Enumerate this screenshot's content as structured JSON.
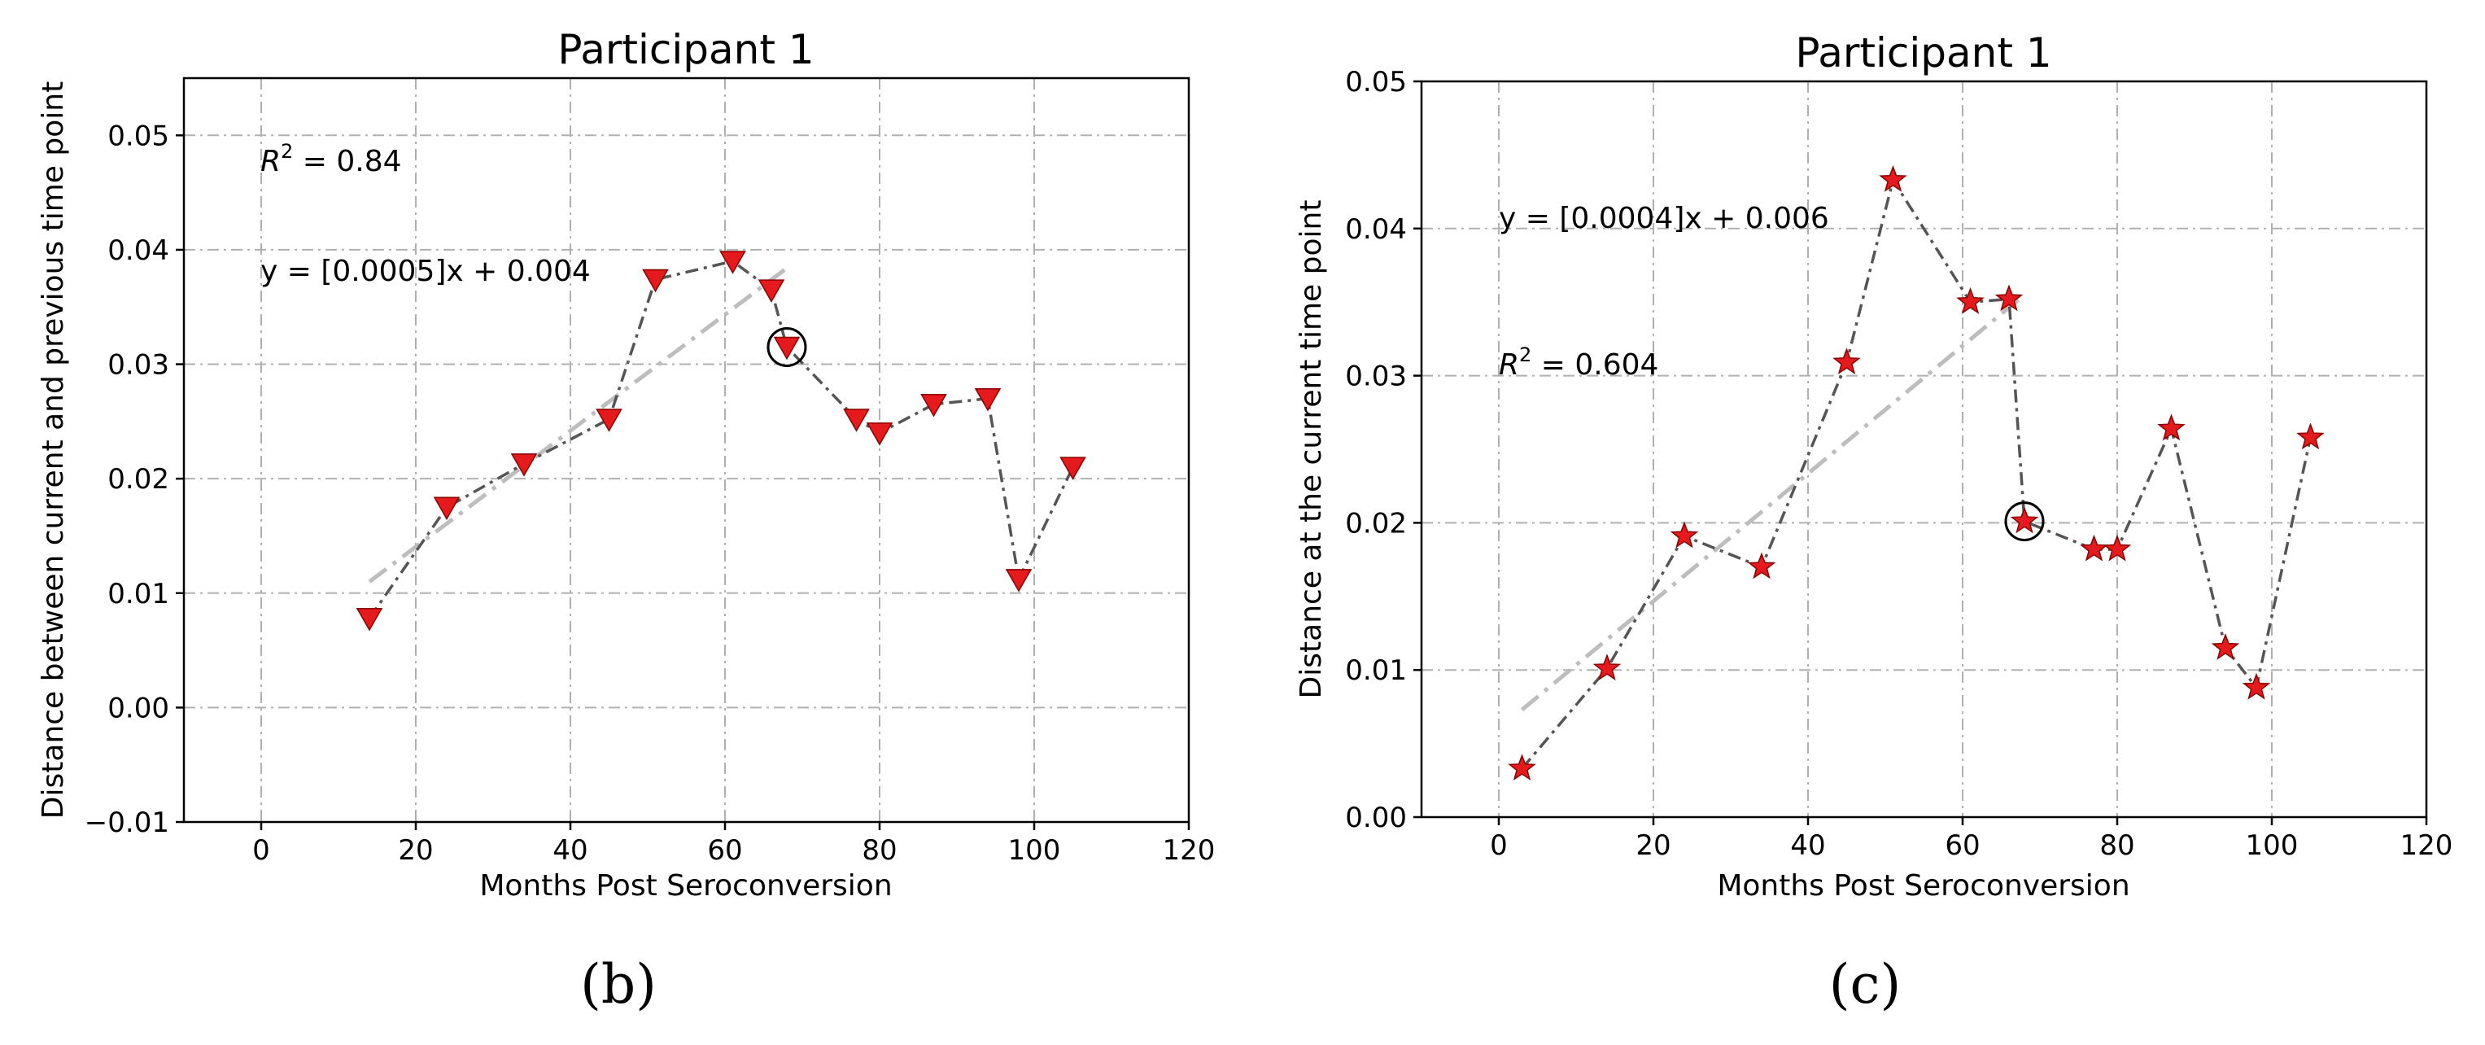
{
  "chart_data": [
    {
      "type": "line",
      "panel_label": "(b)",
      "title": "Participant 1",
      "xlabel": "Months Post Seroconversion",
      "ylabel": "Distance between current and previous time point",
      "xlim": [
        -10,
        120
      ],
      "ylim": [
        -0.01,
        0.055
      ],
      "xticks": [
        0,
        20,
        40,
        60,
        80,
        100,
        120
      ],
      "xtick_labels": [
        "0",
        "20",
        "40",
        "60",
        "80",
        "100",
        "120"
      ],
      "yticks": [
        -0.01,
        0.0,
        0.01,
        0.02,
        0.03,
        0.04,
        0.05
      ],
      "ytick_labels": [
        "−0.01",
        "0.00",
        "0.01",
        "0.02",
        "0.03",
        "0.04",
        "0.05"
      ],
      "grid": true,
      "marker": "triangle-down",
      "marker_color": "#e41a1c",
      "line_color": "#555555",
      "trend_color": "#bdbdbd",
      "series": [
        {
          "x": [
            14,
            24,
            34,
            45,
            51,
            61,
            66,
            68,
            77,
            80,
            87,
            94,
            98,
            105
          ],
          "values": [
            0.0078,
            0.0175,
            0.0213,
            0.0252,
            0.0374,
            0.039,
            0.0365,
            0.0315,
            0.0252,
            0.024,
            0.0265,
            0.027,
            0.0112,
            0.021
          ]
        }
      ],
      "trend_line": {
        "x": [
          14,
          68
        ],
        "values": [
          0.011,
          0.0384
        ]
      },
      "highlight_point": {
        "x": 68,
        "y": 0.0315
      },
      "annotations": {
        "r2_prefix": "R",
        "r2_sup": "2",
        "r2_value": " = 0.84",
        "equation": "y = [0.0005]x + 0.004"
      }
    },
    {
      "type": "line",
      "panel_label": "(c)",
      "title": "Participant 1",
      "xlabel": "Months Post Seroconversion",
      "ylabel": "Distance at the current time point",
      "xlim": [
        -10,
        120
      ],
      "ylim": [
        0.0,
        0.05
      ],
      "xticks": [
        0,
        20,
        40,
        60,
        80,
        100,
        120
      ],
      "xtick_labels": [
        "0",
        "20",
        "40",
        "60",
        "80",
        "100",
        "120"
      ],
      "yticks": [
        0.0,
        0.01,
        0.02,
        0.03,
        0.04,
        0.05
      ],
      "ytick_labels": [
        "0.00",
        "0.01",
        "0.02",
        "0.03",
        "0.04",
        "0.05"
      ],
      "grid": true,
      "marker": "star",
      "marker_color": "#e41a1c",
      "line_color": "#555555",
      "trend_color": "#bdbdbd",
      "series": [
        {
          "x": [
            3,
            14,
            24,
            34,
            45,
            51,
            61,
            66,
            68,
            77,
            80,
            87,
            94,
            98,
            105
          ],
          "values": [
            0.0033,
            0.0101,
            0.0191,
            0.017,
            0.0309,
            0.0433,
            0.035,
            0.0352,
            0.0201,
            0.0182,
            0.0182,
            0.0264,
            0.0115,
            0.0088,
            0.0258
          ]
        }
      ],
      "trend_line": {
        "x": [
          3,
          68
        ],
        "values": [
          0.0073,
          0.0355
        ]
      },
      "highlight_point": {
        "x": 68,
        "y": 0.0201
      },
      "annotations": {
        "equation": "y = [0.0004]x + 0.006",
        "r2_prefix": "R",
        "r2_sup": "2",
        "r2_value": " = 0.604"
      }
    }
  ]
}
